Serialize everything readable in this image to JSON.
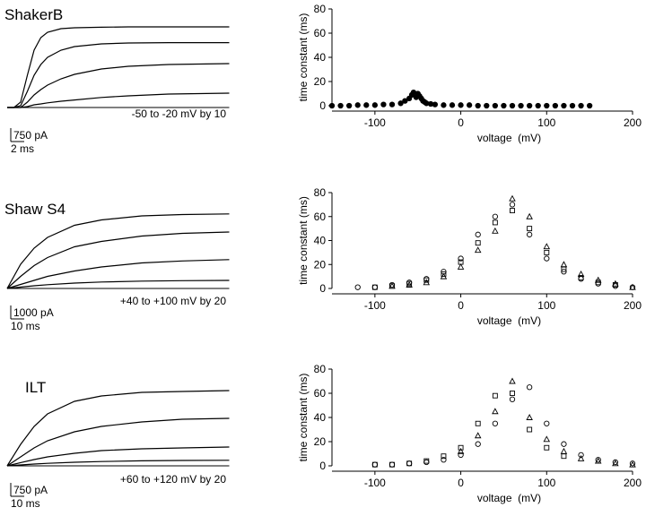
{
  "chart_data": [
    {
      "type": "line",
      "title": "ShakerB",
      "annotation": "-50 to -20 mV by 10",
      "scalebar_y": {
        "value": 750,
        "label": "750 pA"
      },
      "scalebar_x": {
        "value": 2,
        "label": "2 ms"
      },
      "x": [
        0,
        1,
        2,
        3,
        4,
        5,
        6,
        8,
        10,
        14,
        18,
        24,
        33
      ],
      "series": [
        {
          "color": "#000000",
          "values": [
            0,
            0,
            300,
            1800,
            3200,
            3900,
            4200,
            4400,
            4450,
            4480,
            4500,
            4500,
            4500
          ]
        },
        {
          "color": "#000000",
          "values": [
            0,
            0,
            100,
            900,
            1800,
            2400,
            2800,
            3200,
            3400,
            3550,
            3600,
            3620,
            3620
          ]
        },
        {
          "color": "#000000",
          "values": [
            0,
            0,
            0,
            300,
            700,
            1000,
            1250,
            1600,
            1850,
            2150,
            2300,
            2400,
            2450
          ]
        },
        {
          "color": "#000000",
          "values": [
            0,
            0,
            0,
            50,
            150,
            200,
            260,
            350,
            420,
            560,
            650,
            750,
            800
          ]
        }
      ]
    },
    {
      "type": "scatter",
      "xlabel": "voltage  (mV)",
      "ylabel": "time constant (ms)",
      "xlim": [
        -150,
        200
      ],
      "ylim": [
        0,
        80
      ],
      "xticks": [
        -100,
        0,
        100,
        200
      ],
      "yticks": [
        0,
        20,
        40,
        60,
        80
      ],
      "series": [
        {
          "marker": "circle",
          "filled": true,
          "color": "#000000",
          "x": [
            -150,
            -140,
            -130,
            -120,
            -110,
            -100,
            -90,
            -80,
            -70,
            -65,
            -60,
            -57,
            -55,
            -52,
            -50,
            -48,
            -46,
            -44,
            -42,
            -40,
            -35,
            -30,
            -20,
            -10,
            0,
            10,
            20,
            30,
            40,
            50,
            60,
            70,
            80,
            90,
            100,
            110,
            120,
            130,
            140,
            150
          ],
          "values": [
            0,
            0,
            0,
            0.5,
            0.5,
            0.5,
            1,
            1,
            2,
            4,
            6,
            9,
            11,
            7,
            10,
            8,
            6,
            4,
            3,
            2,
            1.5,
            1,
            0.5,
            0.5,
            0.5,
            0.5,
            0,
            0,
            0,
            0,
            0,
            0,
            0,
            0,
            0,
            0,
            0,
            0,
            0,
            0
          ]
        }
      ]
    },
    {
      "type": "line",
      "title": "Shaw S4",
      "annotation": "+40 to +100 mV by 20",
      "scalebar_y": {
        "value": 1000,
        "label": "1000 pA"
      },
      "scalebar_x": {
        "value": 10,
        "label": "10 ms"
      },
      "x": [
        0,
        10,
        20,
        30,
        50,
        70,
        100,
        130,
        165
      ],
      "series": [
        {
          "color": "#000000",
          "values": [
            0,
            1800,
            3000,
            3800,
            4700,
            5100,
            5400,
            5500,
            5550
          ]
        },
        {
          "color": "#000000",
          "values": [
            0,
            900,
            1700,
            2300,
            3100,
            3500,
            3900,
            4100,
            4200
          ]
        },
        {
          "color": "#000000",
          "values": [
            0,
            300,
            600,
            900,
            1300,
            1600,
            1900,
            2050,
            2150
          ]
        },
        {
          "color": "#000000",
          "values": [
            0,
            100,
            200,
            280,
            400,
            480,
            550,
            580,
            600
          ]
        }
      ]
    },
    {
      "type": "scatter",
      "xlabel": "voltage  (mV)",
      "ylabel": "time constant (ms)",
      "xlim": [
        -150,
        200
      ],
      "ylim": [
        0,
        80
      ],
      "xticks": [
        -100,
        0,
        100,
        200
      ],
      "yticks": [
        0,
        20,
        40,
        60,
        80
      ],
      "series": [
        {
          "marker": "circle",
          "filled": false,
          "color": "#000000",
          "x": [
            -120,
            -100,
            -80,
            -60,
            -40,
            -20,
            0,
            20,
            40,
            60,
            80,
            100,
            120,
            140,
            160,
            180,
            200
          ],
          "values": [
            1,
            1,
            3,
            5,
            8,
            14,
            25,
            45,
            60,
            70,
            45,
            25,
            14,
            8,
            4,
            2,
            1
          ]
        },
        {
          "marker": "square",
          "filled": false,
          "color": "#000000",
          "x": [
            -100,
            -80,
            -60,
            -40,
            -20,
            0,
            20,
            40,
            60,
            80,
            100,
            120,
            140,
            160,
            180
          ],
          "values": [
            1,
            2,
            4,
            7,
            12,
            22,
            38,
            55,
            65,
            50,
            30,
            16,
            9,
            5,
            3
          ]
        },
        {
          "marker": "triangle",
          "filled": false,
          "color": "#000000",
          "x": [
            -80,
            -60,
            -40,
            -20,
            0,
            20,
            40,
            60,
            80,
            100,
            120,
            140,
            160,
            180,
            200
          ],
          "values": [
            2,
            3,
            5,
            10,
            18,
            32,
            48,
            75,
            60,
            35,
            20,
            12,
            7,
            4,
            1
          ]
        }
      ]
    },
    {
      "type": "line",
      "title": "ILT",
      "annotation": "+60 to +120 mV by 20",
      "scalebar_y": {
        "value": 750,
        "label": "750 pA"
      },
      "scalebar_x": {
        "value": 10,
        "label": "10 ms"
      },
      "x": [
        0,
        10,
        20,
        30,
        50,
        70,
        100,
        130,
        165
      ],
      "series": [
        {
          "color": "#000000",
          "values": [
            0,
            1200,
            2200,
            2900,
            3600,
            3900,
            4100,
            4150,
            4200
          ]
        },
        {
          "color": "#000000",
          "values": [
            0,
            500,
            1000,
            1400,
            1900,
            2200,
            2450,
            2600,
            2650
          ]
        },
        {
          "color": "#000000",
          "values": [
            0,
            180,
            350,
            500,
            700,
            850,
            950,
            1000,
            1050
          ]
        },
        {
          "color": "#000000",
          "values": [
            0,
            50,
            100,
            140,
            200,
            240,
            280,
            300,
            310
          ]
        }
      ]
    },
    {
      "type": "scatter",
      "xlabel": "voltage  (mV)",
      "ylabel": "time constant (ms)",
      "xlim": [
        -150,
        200
      ],
      "ylim": [
        0,
        80
      ],
      "xticks": [
        -100,
        0,
        100,
        200
      ],
      "yticks": [
        0,
        20,
        40,
        60,
        80
      ],
      "series": [
        {
          "marker": "circle",
          "filled": false,
          "color": "#000000",
          "x": [
            -100,
            -80,
            -60,
            -40,
            -20,
            0,
            20,
            40,
            60,
            80,
            100,
            120,
            140,
            160,
            180,
            200
          ],
          "values": [
            1,
            1,
            2,
            3,
            5,
            9,
            18,
            35,
            55,
            65,
            35,
            18,
            9,
            5,
            3,
            2
          ]
        },
        {
          "marker": "square",
          "filled": false,
          "color": "#000000",
          "x": [
            -100,
            -80,
            -60,
            -40,
            -20,
            0,
            20,
            40,
            60,
            80,
            100,
            120
          ],
          "values": [
            1,
            1,
            2,
            4,
            8,
            15,
            35,
            58,
            60,
            30,
            15,
            8
          ]
        },
        {
          "marker": "triangle",
          "filled": false,
          "color": "#000000",
          "x": [
            0,
            20,
            40,
            60,
            80,
            100,
            120,
            140,
            160,
            180,
            200
          ],
          "values": [
            12,
            25,
            45,
            70,
            40,
            22,
            12,
            6,
            4,
            2,
            1
          ]
        }
      ]
    }
  ]
}
